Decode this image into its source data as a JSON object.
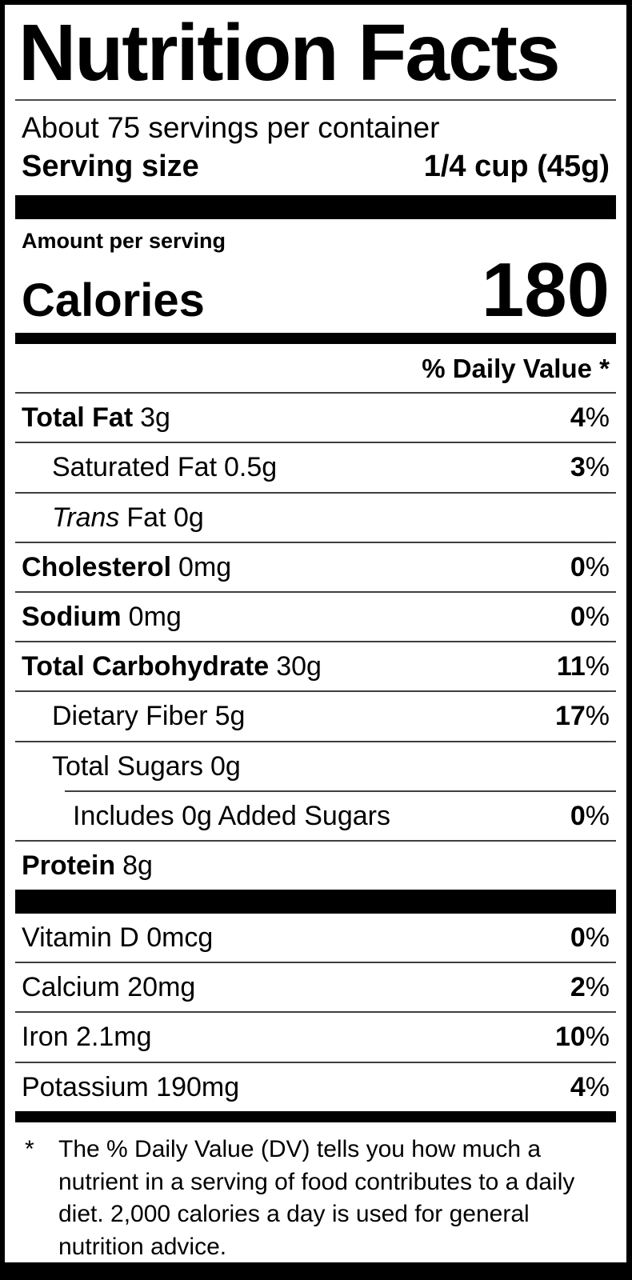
{
  "label": {
    "title": "Nutrition Facts",
    "servings_per_container": "About 75 servings per container",
    "serving_size": {
      "label": "Serving size",
      "value": "1/4 cup (45g)"
    },
    "amount_per_serving": "Amount per serving",
    "calories": {
      "label": "Calories",
      "value": "180"
    },
    "daily_value_header": "% Daily Value *",
    "nutrients": [
      {
        "name": "Total Fat",
        "amount": "3g",
        "dv": "4"
      },
      {
        "name": "Saturated Fat",
        "amount": "0.5g",
        "dv": "3"
      },
      {
        "name": "Trans",
        "amount": "Fat 0g",
        "dv": ""
      },
      {
        "name": "Cholesterol",
        "amount": "0mg",
        "dv": "0"
      },
      {
        "name": "Sodium",
        "amount": "0mg",
        "dv": "0"
      },
      {
        "name": "Total Carbohydrate",
        "amount": "30g",
        "dv": "11"
      },
      {
        "name": "Dietary Fiber",
        "amount": "5g",
        "dv": "17"
      },
      {
        "name": "Total Sugars",
        "amount": "0g",
        "dv": ""
      },
      {
        "name": "Includes 0g Added Sugars",
        "amount": "",
        "dv": "0"
      },
      {
        "name": "Protein",
        "amount": "8g",
        "dv": ""
      }
    ],
    "vitamins": [
      {
        "name": "Vitamin D 0mcg",
        "dv": "0"
      },
      {
        "name": "Calcium 20mg",
        "dv": "2"
      },
      {
        "name": "Iron 2.1mg",
        "dv": "10"
      },
      {
        "name": "Potassium 190mg",
        "dv": "4"
      }
    ],
    "symbols": {
      "percent": "%",
      "asterisk": "*"
    },
    "footnote": "The % Daily Value (DV) tells you how much a nutrient in a serving of food contributes to a daily diet. 2,000 calories a day is used for general nutrition advice.",
    "colors": {
      "ink": "#000000",
      "paper": "#ffffff",
      "hairline": "#3f3f3f"
    }
  }
}
